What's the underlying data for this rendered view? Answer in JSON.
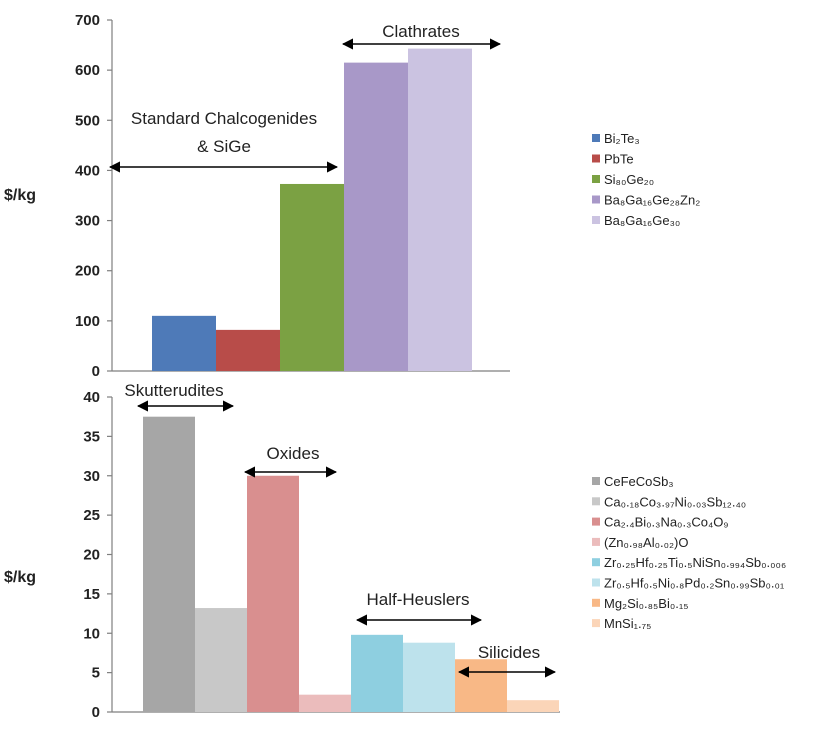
{
  "chart_data": [
    {
      "type": "bar",
      "ylabel": "$/kg",
      "ylim": [
        0,
        700
      ],
      "yticks": [
        "0",
        "100",
        "200",
        "300",
        "400",
        "500",
        "600",
        "700"
      ],
      "grid": false,
      "legend_position": "right",
      "series": [
        {
          "name": "Bi₂Te₃",
          "value": 110,
          "color": "#4e7ab8"
        },
        {
          "name": "PbTe",
          "value": 82,
          "color": "#b84c49"
        },
        {
          "name": "Si₈₀Ge₂₀",
          "value": 373,
          "color": "#7ba143"
        },
        {
          "name": "Ba₈Ga₁₆Ge₂₈Zn₂",
          "value": 615,
          "color": "#a898c8"
        },
        {
          "name": "Ba₈Ga₁₆Ge₃₀",
          "value": 643,
          "color": "#cbc3e1"
        }
      ],
      "annotations": [
        {
          "text": "Clathrates"
        },
        {
          "text": "Standard Chalcogenides"
        },
        {
          "text": "& SiGe"
        }
      ]
    },
    {
      "type": "bar",
      "ylabel": "$/kg",
      "ylim": [
        0,
        40
      ],
      "yticks": [
        "0",
        "5",
        "10",
        "15",
        "20",
        "25",
        "30",
        "35",
        "40"
      ],
      "grid": false,
      "legend_position": "right",
      "series": [
        {
          "name": "CeFeCoSb₃",
          "value": 37.5,
          "color": "#a6a6a6"
        },
        {
          "name": "Ca₀.₁₈Co₃.₉₇Ni₀.₀₃Sb₁₂.₄₀",
          "value": 13.2,
          "color": "#c8c8c8"
        },
        {
          "name": "Ca₂.₄Bi₀.₃Na₀.₃Co₄O₉",
          "value": 30,
          "color": "#d98f8f"
        },
        {
          "name": "(Zn₀.₉₈Al₀.₀₂)O",
          "value": 2.2,
          "color": "#ebbcbc"
        },
        {
          "name": "Zr₀.₂₅Hf₀.₂₅Ti₀.₅NiSn₀.₉₉₄Sb₀.₀₀₆",
          "value": 9.8,
          "color": "#8ecfe0"
        },
        {
          "name": "Zr₀.₅Hf₀.₅Ni₀.₈Pd₀.₂Sn₀.₉₉Sb₀.₀₁",
          "value": 8.8,
          "color": "#bde2ec"
        },
        {
          "name": "Mg₂Si₀.₈₅Bi₀.₁₅",
          "value": 6.7,
          "color": "#f8b886"
        },
        {
          "name": "MnSi₁.₇₅",
          "value": 1.5,
          "color": "#fbd5b8"
        }
      ],
      "annotations": [
        {
          "text": "Skutterudites"
        },
        {
          "text": "Oxides"
        },
        {
          "text": "Half-Heuslers"
        },
        {
          "text": "Silicides"
        }
      ]
    }
  ]
}
